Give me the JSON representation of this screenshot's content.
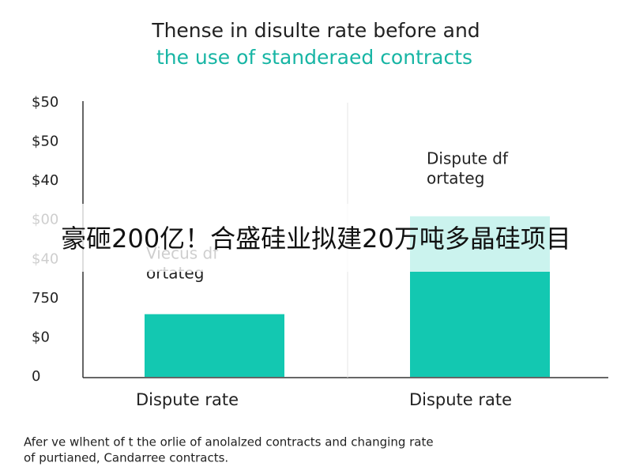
{
  "chart_data": {
    "type": "bar",
    "title": "Thense in disulte rate before and",
    "subtitle": "the use of standeraed contracts",
    "categories": [
      "Dispute rate",
      "Dispute rate"
    ],
    "values": [
      1.6,
      4.1
    ],
    "color": "#13c8b1",
    "ylim": [
      0,
      7
    ],
    "y_labels": [
      "0",
      "$0",
      "750",
      "$40",
      "$00",
      "$40",
      "$50",
      "$50"
    ],
    "annotations": [
      {
        "lines": [
          "Viecus df",
          "ortateg"
        ]
      },
      {
        "lines": [
          "Dispute df",
          "ortateg"
        ]
      }
    ],
    "caption": [
      "Afer ve wlhent of t the orlie of anolalzed contracts and changing rate",
      "of purtianed, Candarree contracts."
    ]
  },
  "banner": "豪砸200亿！合盛硅业拟建20万吨多晶硅项目"
}
